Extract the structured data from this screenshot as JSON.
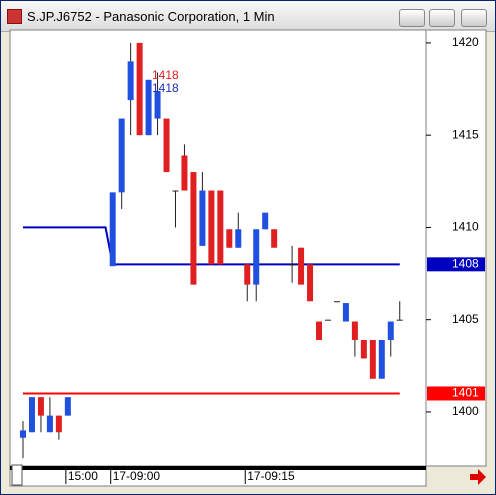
{
  "chart_data": {
    "type": "candlestick",
    "title": "S.JP.J6752 - Panasonic Corporation, 1 Min",
    "up_color": "#2050e0",
    "down_color": "#e02020",
    "ylim": [
      1397.07,
      1420.7
    ],
    "yticks": [
      1400,
      1405,
      1410,
      1415,
      1420
    ],
    "xticks": [
      {
        "value": 5,
        "label": "15:00"
      },
      {
        "value": 10,
        "label": "17-09:00"
      },
      {
        "value": 25,
        "label": "17-09:15"
      }
    ],
    "candles": [
      {
        "open": 1398.6,
        "high": 1399.5,
        "low": 1397.5,
        "close": 1399
      },
      {
        "open": 1398.9,
        "high": 1400.8,
        "low": 1398.9,
        "close": 1400.8
      },
      {
        "open": 1400.8,
        "high": 1400.8,
        "low": 1398.9,
        "close": 1399.8
      },
      {
        "open": 1398.9,
        "high": 1400.8,
        "low": 1398.9,
        "close": 1399.8
      },
      {
        "open": 1399.8,
        "high": 1399.8,
        "low": 1398.5,
        "close": 1398.9
      },
      {
        "open": 1399.8,
        "high": 1400.8,
        "low": 1399.8,
        "close": 1400.8
      },
      null,
      null,
      null,
      null,
      {
        "open": 1407.9,
        "high": 1411.9,
        "low": 1407.9,
        "close": 1411.9
      },
      {
        "open": 1411.9,
        "high": 1415.9,
        "low": 1411,
        "close": 1415.9
      },
      {
        "open": 1416.9,
        "high": 1420,
        "low": 1415,
        "close": 1419
      },
      {
        "open": 1420,
        "high": 1420,
        "low": 1415,
        "close": 1415
      },
      {
        "open": 1415,
        "high": 1418,
        "low": 1415,
        "close": 1418
      },
      {
        "open": 1415.9,
        "high": 1418.4,
        "low": 1415,
        "close": 1417.4
      },
      {
        "open": 1415.9,
        "high": 1415.9,
        "low": 1413,
        "close": 1413
      },
      {
        "open": 1412,
        "high": 1412,
        "low": 1410,
        "close": 1412
      },
      {
        "open": 1413.9,
        "high": 1414.5,
        "low": 1412,
        "close": 1412
      },
      {
        "open": 1413,
        "high": 1413,
        "low": 1406.9,
        "close": 1406.9
      },
      {
        "open": 1409,
        "high": 1413,
        "low": 1409,
        "close": 1412
      },
      {
        "open": 1412,
        "high": 1412,
        "low": 1408,
        "close": 1408
      },
      {
        "open": 1412,
        "high": 1412,
        "low": 1408,
        "close": 1408
      },
      {
        "open": 1409.9,
        "high": 1409.9,
        "low": 1408.9,
        "close": 1408.9
      },
      {
        "open": 1408.9,
        "high": 1410.8,
        "low": 1408.9,
        "close": 1409.9
      },
      {
        "open": 1408,
        "high": 1408,
        "low": 1406,
        "close": 1406.9
      },
      {
        "open": 1406.9,
        "high": 1409.9,
        "low": 1406,
        "close": 1409.9
      },
      {
        "open": 1409.9,
        "high": 1410.8,
        "low": 1409.9,
        "close": 1410.8
      },
      {
        "open": 1409.9,
        "high": 1409.9,
        "low": 1408.9,
        "close": 1408.9
      },
      null,
      {
        "open": 1408,
        "high": 1409,
        "low": 1407,
        "close": 1408
      },
      {
        "open": 1408.9,
        "high": 1408.9,
        "low": 1406.9,
        "close": 1406.9
      },
      {
        "open": 1408,
        "high": 1408,
        "low": 1406,
        "close": 1406
      },
      {
        "open": 1404.9,
        "high": 1404.9,
        "low": 1403.9,
        "close": 1403.9
      },
      {
        "open": 1405,
        "high": 1405,
        "low": 1405,
        "close": 1405
      },
      {
        "open": 1406,
        "high": 1406,
        "low": 1406,
        "close": 1406
      },
      {
        "open": 1404.9,
        "high": 1405.9,
        "low": 1404.9,
        "close": 1405.9
      },
      {
        "open": 1404.9,
        "high": 1404.9,
        "low": 1403,
        "close": 1403.9
      },
      {
        "open": 1403.9,
        "high": 1403.9,
        "low": 1402.9,
        "close": 1402.9
      },
      {
        "open": 1403.9,
        "high": 1403.9,
        "low": 1401.8,
        "close": 1401.8
      },
      {
        "open": 1401.8,
        "high": 1403.9,
        "low": 1401.8,
        "close": 1403.9
      },
      {
        "open": 1403.9,
        "high": 1404.9,
        "low": 1403,
        "close": 1404.9
      },
      {
        "open": 1405,
        "high": 1406,
        "low": 1405,
        "close": 1405
      }
    ],
    "lines": [
      {
        "color": "#0000c0",
        "start_value": 1410,
        "value": 1408,
        "label": "1408"
      },
      {
        "color": "#ff0000",
        "value": 1401,
        "label": "1401"
      }
    ],
    "annotations": [
      {
        "text": "1418",
        "value": 1418,
        "color": "#e02020"
      },
      {
        "text": "1418",
        "value": 1418,
        "color": "#2030c0"
      }
    ]
  }
}
